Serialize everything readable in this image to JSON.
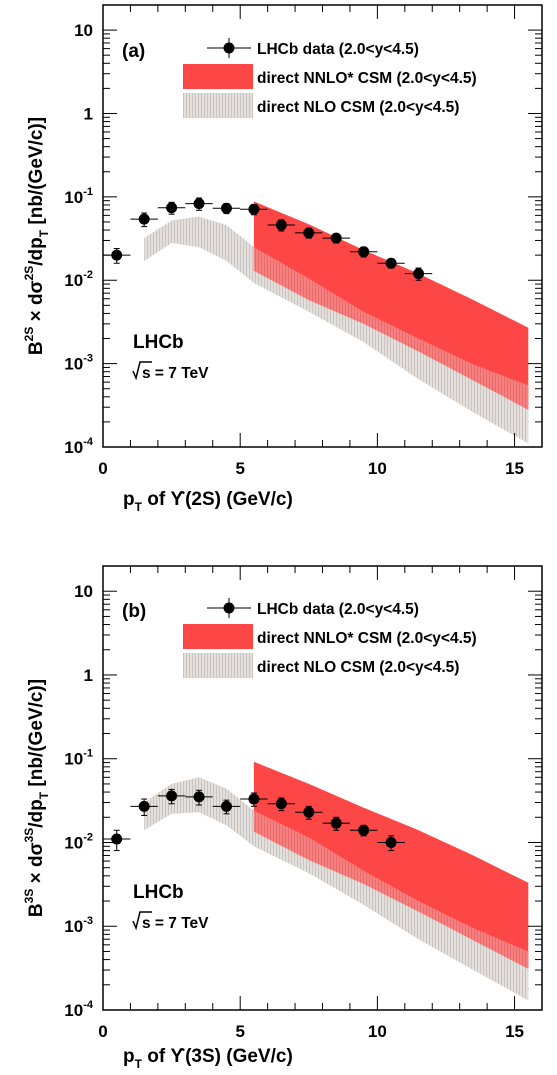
{
  "chart_data": [
    {
      "type": "scatter",
      "panel_label": "(a)",
      "xlabel_parts": [
        "p",
        "T",
        " of ϒ(2S) (GeV/c)"
      ],
      "ylabel_parts": [
        "B",
        "2S",
        " × dσ",
        "2S",
        "/dp",
        "T",
        " [nb/(GeV/c)]"
      ],
      "xlim": [
        0,
        16
      ],
      "ylim": [
        0.0001,
        20
      ],
      "y_scale": "log",
      "x_ticks": [
        "0",
        "5",
        "10",
        "15"
      ],
      "y_ticks": [
        {
          "value": 10,
          "label": "10"
        },
        {
          "value": 1,
          "label": "1"
        },
        {
          "value": 0.1,
          "base": "10",
          "exp": "-1"
        },
        {
          "value": 0.01,
          "base": "10",
          "exp": "-2"
        },
        {
          "value": 0.001,
          "base": "10",
          "exp": "-3"
        },
        {
          "value": 0.0001,
          "base": "10",
          "exp": "-4"
        }
      ],
      "experiment": "LHCb",
      "energy_text": "s = 7 TeV",
      "legend": [
        "LHCb data (2.0<y<4.5)",
        "direct NNLO* CSM (2.0<y<4.5)",
        "direct NLO CSM (2.0<y<4.5)"
      ],
      "colors": {
        "nnlo": "#fd4646",
        "nlo": "#d6d2ce",
        "data": "#000000"
      },
      "data_points": {
        "x": [
          0.5,
          1.5,
          2.5,
          3.5,
          4.5,
          5.5,
          6.5,
          7.5,
          8.5,
          9.5,
          10.5,
          11.5
        ],
        "y": [
          0.02,
          0.054,
          0.074,
          0.083,
          0.073,
          0.071,
          0.046,
          0.037,
          0.032,
          0.022,
          0.016,
          0.012
        ],
        "yerr_up": [
          0.004,
          0.01,
          0.012,
          0.014,
          0.01,
          0.01,
          0.007,
          0.005,
          0.004,
          0.003,
          0.002,
          0.002
        ],
        "yerr_down": [
          0.004,
          0.01,
          0.012,
          0.014,
          0.01,
          0.01,
          0.007,
          0.005,
          0.004,
          0.003,
          0.002,
          0.002
        ]
      },
      "nlo_band": {
        "x": [
          1.5,
          2.5,
          3.5,
          4.5,
          5.5,
          7.5,
          9.5,
          11.5,
          13.5,
          15.5
        ],
        "upper": [
          0.032,
          0.052,
          0.058,
          0.046,
          0.025,
          0.0105,
          0.0042,
          0.002,
          0.00098,
          0.00055
        ],
        "lower": [
          0.017,
          0.028,
          0.025,
          0.017,
          0.0093,
          0.0042,
          0.0018,
          0.00065,
          0.00026,
          0.00011
        ]
      },
      "nnlo_band": {
        "x": [
          5.5,
          7.5,
          9.5,
          11.5,
          13.5,
          15.5
        ],
        "upper": [
          0.088,
          0.047,
          0.023,
          0.012,
          0.0058,
          0.0027
        ],
        "lower": [
          0.013,
          0.0058,
          0.003,
          0.0014,
          0.00063,
          0.00028
        ]
      }
    },
    {
      "type": "scatter",
      "panel_label": "(b)",
      "xlabel_parts": [
        "p",
        "T",
        " of ϒ(3S) (GeV/c)"
      ],
      "ylabel_parts": [
        "B",
        "3S",
        " × dσ",
        "3S",
        "/dp",
        "T",
        " [nb/(GeV/c)]"
      ],
      "xlim": [
        0,
        16
      ],
      "ylim": [
        0.0001,
        20
      ],
      "y_scale": "log",
      "x_ticks": [
        "0",
        "5",
        "10",
        "15"
      ],
      "y_ticks": [
        {
          "value": 10,
          "label": "10"
        },
        {
          "value": 1,
          "label": "1"
        },
        {
          "value": 0.1,
          "base": "10",
          "exp": "-1"
        },
        {
          "value": 0.01,
          "base": "10",
          "exp": "-2"
        },
        {
          "value": 0.001,
          "base": "10",
          "exp": "-3"
        },
        {
          "value": 0.0001,
          "base": "10",
          "exp": "-4"
        }
      ],
      "experiment": "LHCb",
      "energy_text": "s = 7 TeV",
      "legend": [
        "LHCb data (2.0<y<4.5)",
        "direct NNLO* CSM (2.0<y<4.5)",
        "direct NLO CSM (2.0<y<4.5)"
      ],
      "colors": {
        "nnlo": "#fd4646",
        "nlo": "#d6d2ce",
        "data": "#000000"
      },
      "data_points": {
        "x": [
          0.5,
          1.5,
          2.5,
          3.5,
          4.5,
          5.5,
          6.5,
          7.5,
          8.5,
          9.5,
          10.5
        ],
        "y": [
          0.011,
          0.027,
          0.036,
          0.035,
          0.027,
          0.033,
          0.029,
          0.023,
          0.017,
          0.014,
          0.01
        ],
        "yerr_up": [
          0.003,
          0.006,
          0.007,
          0.007,
          0.005,
          0.006,
          0.005,
          0.004,
          0.003,
          0.002,
          0.002
        ],
        "yerr_down": [
          0.003,
          0.006,
          0.007,
          0.007,
          0.005,
          0.006,
          0.005,
          0.004,
          0.003,
          0.002,
          0.002
        ]
      },
      "nlo_band": {
        "x": [
          1.5,
          2.5,
          3.5,
          4.5,
          5.5,
          7.5,
          9.5,
          11.5,
          13.5,
          15.5
        ],
        "upper": [
          0.03,
          0.05,
          0.06,
          0.044,
          0.024,
          0.0115,
          0.0046,
          0.002,
          0.00095,
          0.0005
        ],
        "lower": [
          0.014,
          0.022,
          0.023,
          0.016,
          0.009,
          0.0043,
          0.0018,
          0.0007,
          0.0003,
          0.00013
        ]
      },
      "nnlo_band": {
        "x": [
          5.5,
          7.5,
          9.5,
          11.5,
          13.5,
          15.5
        ],
        "upper": [
          0.092,
          0.05,
          0.026,
          0.014,
          0.007,
          0.0033
        ],
        "lower": [
          0.0135,
          0.0062,
          0.0032,
          0.0015,
          0.00068,
          0.00031
        ]
      }
    }
  ]
}
